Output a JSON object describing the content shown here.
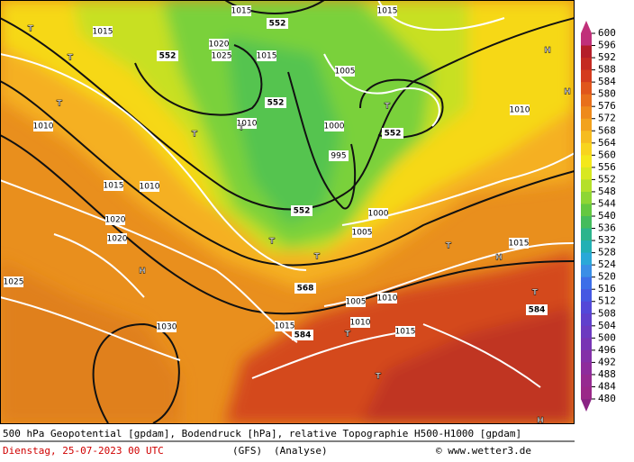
{
  "legend": {
    "ticks": [
      "600",
      "596",
      "592",
      "588",
      "584",
      "580",
      "576",
      "572",
      "568",
      "564",
      "560",
      "556",
      "552",
      "548",
      "544",
      "540",
      "536",
      "532",
      "528",
      "524",
      "520",
      "516",
      "512",
      "508",
      "504",
      "500",
      "496",
      "492",
      "488",
      "484",
      "480"
    ]
  },
  "map_labels": [
    "552",
    "552",
    "552",
    "552",
    "552",
    "568",
    "584",
    "584",
    "995",
    "1000",
    "1005",
    "1005",
    "1010",
    "1010",
    "1010",
    "1010",
    "1010",
    "1015",
    "1015",
    "1015",
    "1015",
    "1015",
    "1015",
    "1020",
    "1020",
    "1025",
    "1025",
    "1030",
    "1020",
    "1010",
    "1015",
    "1015",
    "1005",
    "1000",
    "T",
    "T",
    "T",
    "T",
    "T",
    "T",
    "T",
    "T",
    "T",
    "T",
    "T",
    "T",
    "H",
    "H",
    "H",
    "H",
    "H"
  ],
  "footer": {
    "line1": "500 hPa Geopotential [gpdam], Bodendruck [hPa], relative Topographie H500-H1000 [gpdam]",
    "date": "Dienstag, 25-07-2023  00 UTC",
    "model": "(GFS)",
    "run": "(Analyse)",
    "credit": "© www.wetter3.de"
  }
}
